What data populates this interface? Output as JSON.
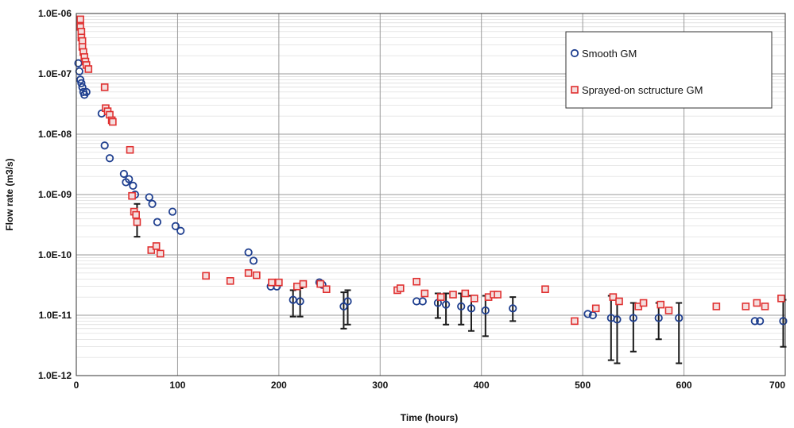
{
  "chart_data": {
    "type": "scatter",
    "title": "",
    "xlabel": "Time (hours)",
    "ylabel": "Flow rate (m3/s)",
    "xlim": [
      0,
      700
    ],
    "ylim": [
      1e-12,
      1e-06
    ],
    "yscale": "log",
    "x_ticks": [
      "0",
      "100",
      "200",
      "300",
      "400",
      "500",
      "600",
      "700"
    ],
    "y_ticks": [
      "1.0E-12",
      "1.0E-11",
      "1.0E-10",
      "1.0E-09",
      "1.0E-08",
      "1.0E-07",
      "1.0E-06"
    ],
    "grid": true,
    "legend": "top-right",
    "colors": {
      "smooth": "#1f3f8f",
      "sprayed": "#e03030",
      "errorbar": "#1a1a1a",
      "grid": "#9a9a9a"
    },
    "series": [
      {
        "name": "Smooth GM",
        "marker": "circle",
        "points": [
          [
            2,
            1.5e-07
          ],
          [
            3,
            1.1e-07
          ],
          [
            4,
            8e-08
          ],
          [
            5,
            7e-08
          ],
          [
            6,
            6e-08
          ],
          [
            7,
            5e-08
          ],
          [
            8,
            4.5e-08
          ],
          [
            10,
            5e-08
          ],
          [
            25,
            2.2e-08
          ],
          [
            28,
            6.5e-09
          ],
          [
            33,
            4e-09
          ],
          [
            47,
            2.2e-09
          ],
          [
            49,
            1.6e-09
          ],
          [
            52,
            1.8e-09
          ],
          [
            56,
            1.4e-09
          ],
          [
            58,
            1e-09
          ],
          [
            72,
            9e-10
          ],
          [
            75,
            7e-10
          ],
          [
            80,
            3.5e-10
          ],
          [
            95,
            5.2e-10
          ],
          [
            98,
            3e-10
          ],
          [
            103,
            2.5e-10
          ],
          [
            170,
            1.1e-10
          ],
          [
            175,
            8e-11
          ],
          [
            192,
            3e-11
          ],
          [
            198,
            3e-11
          ],
          [
            214,
            1.8e-11
          ],
          [
            221,
            1.7e-11
          ],
          [
            240,
            3.5e-11
          ],
          [
            243,
            3.2e-11
          ],
          [
            264,
            1.4e-11
          ],
          [
            268,
            1.7e-11
          ],
          [
            336,
            1.7e-11
          ],
          [
            342,
            1.7e-11
          ],
          [
            357,
            1.6e-11
          ],
          [
            365,
            1.5e-11
          ],
          [
            380,
            1.4e-11
          ],
          [
            390,
            1.3e-11
          ],
          [
            404,
            1.2e-11
          ],
          [
            431,
            1.3e-11
          ],
          [
            505,
            1.05e-11
          ],
          [
            510,
            1e-11
          ],
          [
            528,
            9e-12
          ],
          [
            534,
            8.5e-12
          ],
          [
            550,
            9e-12
          ],
          [
            575,
            9e-12
          ],
          [
            595,
            9e-12
          ],
          [
            670,
            8e-12
          ],
          [
            675,
            8e-12
          ],
          [
            698,
            8e-12
          ]
        ]
      },
      {
        "name": "Sprayed-on sctructure GM",
        "marker": "square",
        "points": [
          [
            4,
            8e-07
          ],
          [
            4,
            6e-07
          ],
          [
            5,
            5e-07
          ],
          [
            5,
            4e-07
          ],
          [
            6,
            3.5e-07
          ],
          [
            6,
            2.8e-07
          ],
          [
            7,
            2.3e-07
          ],
          [
            8,
            1.9e-07
          ],
          [
            9,
            1.6e-07
          ],
          [
            10,
            1.4e-07
          ],
          [
            12,
            1.2e-07
          ],
          [
            28,
            6e-08
          ],
          [
            29,
            2.7e-08
          ],
          [
            31,
            2.4e-08
          ],
          [
            33,
            2.1e-08
          ],
          [
            35,
            1.7e-08
          ],
          [
            36,
            1.6e-08
          ],
          [
            53,
            5.5e-09
          ],
          [
            55,
            9.5e-10
          ],
          [
            57,
            5.2e-10
          ],
          [
            59,
            4.6e-10
          ],
          [
            60,
            3.5e-10
          ],
          [
            74,
            1.2e-10
          ],
          [
            79,
            1.4e-10
          ],
          [
            83,
            1.05e-10
          ],
          [
            128,
            4.5e-11
          ],
          [
            152,
            3.7e-11
          ],
          [
            170,
            5e-11
          ],
          [
            178,
            4.6e-11
          ],
          [
            193,
            3.5e-11
          ],
          [
            200,
            3.5e-11
          ],
          [
            218,
            3e-11
          ],
          [
            224,
            3.3e-11
          ],
          [
            241,
            3.3e-11
          ],
          [
            247,
            2.7e-11
          ],
          [
            317,
            2.6e-11
          ],
          [
            320,
            2.8e-11
          ],
          [
            336,
            3.6e-11
          ],
          [
            344,
            2.3e-11
          ],
          [
            360,
            2e-11
          ],
          [
            372,
            2.2e-11
          ],
          [
            384,
            2.3e-11
          ],
          [
            393,
            1.9e-11
          ],
          [
            407,
            2e-11
          ],
          [
            412,
            2.2e-11
          ],
          [
            416,
            2.2e-11
          ],
          [
            463,
            2.7e-11
          ],
          [
            492,
            8e-12
          ],
          [
            513,
            1.3e-11
          ],
          [
            530,
            2e-11
          ],
          [
            536,
            1.7e-11
          ],
          [
            555,
            1.4e-11
          ],
          [
            560,
            1.6e-11
          ],
          [
            577,
            1.5e-11
          ],
          [
            585,
            1.2e-11
          ],
          [
            632,
            1.4e-11
          ],
          [
            661,
            1.4e-11
          ],
          [
            672,
            1.6e-11
          ],
          [
            680,
            1.4e-11
          ],
          [
            696,
            1.9e-11
          ]
        ]
      }
    ],
    "error_bars": [
      [
        60,
        2e-10,
        7e-10
      ],
      [
        214,
        9.5e-12,
        2.6e-11
      ],
      [
        221,
        9.5e-12,
        2.8e-11
      ],
      [
        264,
        6e-12,
        2.4e-11
      ],
      [
        268,
        7e-12,
        2.6e-11
      ],
      [
        357,
        9e-12,
        2.3e-11
      ],
      [
        365,
        7e-12,
        2.3e-11
      ],
      [
        380,
        7e-12,
        2.3e-11
      ],
      [
        390,
        5.5e-12,
        2.1e-11
      ],
      [
        404,
        4.5e-12,
        2.1e-11
      ],
      [
        431,
        8e-12,
        2e-11
      ],
      [
        528,
        1.8e-12,
        2.1e-11
      ],
      [
        534,
        1.6e-12,
        1.8e-11
      ],
      [
        550,
        2.5e-12,
        1.6e-11
      ],
      [
        575,
        4e-12,
        1.6e-11
      ],
      [
        595,
        1.6e-12,
        1.6e-11
      ],
      [
        698,
        3e-12,
        1.8e-11
      ]
    ]
  }
}
